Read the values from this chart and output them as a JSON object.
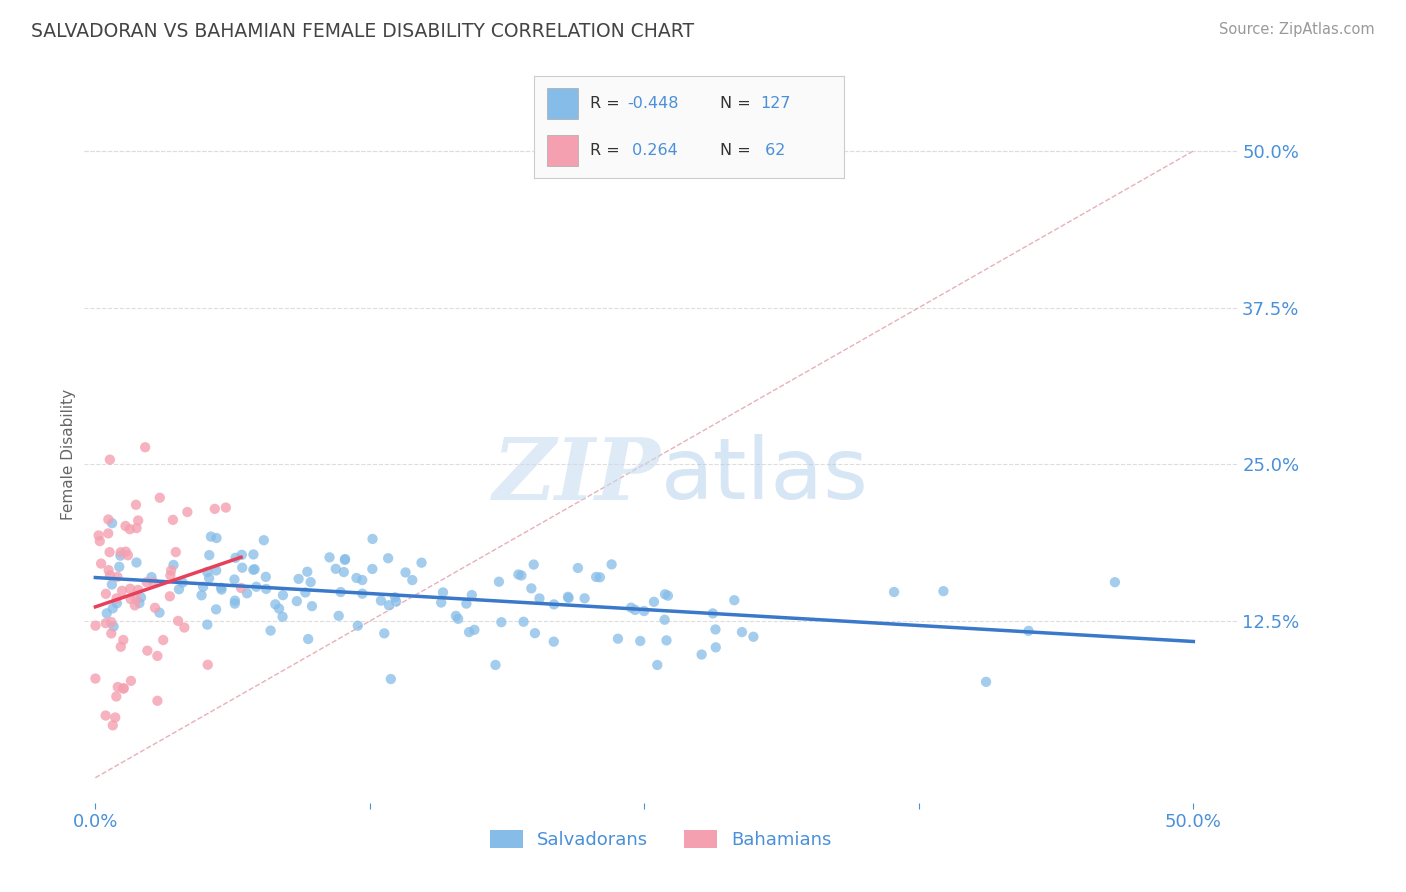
{
  "title": "SALVADORAN VS BAHAMIAN FEMALE DISABILITY CORRELATION CHART",
  "source": "Source: ZipAtlas.com",
  "ylabel": "Female Disability",
  "y_tick_labels_right": [
    "12.5%",
    "25.0%",
    "37.5%",
    "50.0%"
  ],
  "y_ticks_right": [
    0.125,
    0.25,
    0.375,
    0.5
  ],
  "xlim": [
    -0.005,
    0.52
  ],
  "ylim": [
    -0.02,
    0.535
  ],
  "legend_R1": "-0.448",
  "legend_N1": "127",
  "legend_R2": "0.264",
  "legend_N2": "62",
  "blue_color": "#85BCE8",
  "pink_color": "#F4A0B0",
  "blue_line_color": "#3A78C9",
  "pink_line_color": "#E8405A",
  "ref_line_color": "#D0D0D0",
  "title_color": "#444444",
  "axis_label_color": "#666666",
  "tick_color": "#4A90D9",
  "background_color": "#FFFFFF",
  "bottom_labels": [
    "Salvadorans",
    "Bahamians"
  ],
  "n_blue": 127,
  "n_pink": 62,
  "R_blue": -0.448,
  "R_pink": 0.264
}
